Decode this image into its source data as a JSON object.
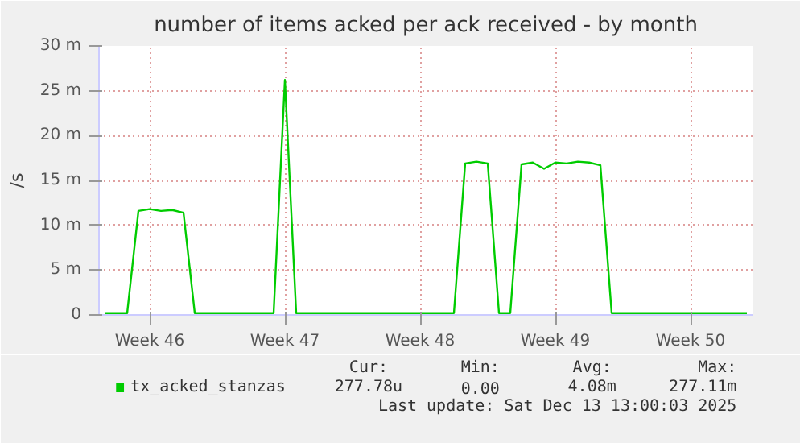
{
  "chart_data": {
    "type": "line",
    "title": "number of items acked per ack received - by month",
    "ylabel": "/s",
    "categories": [
      null,
      null,
      null,
      null,
      "Week 46",
      null,
      null,
      null,
      null,
      null,
      null,
      null,
      null,
      null,
      null,
      null,
      "Week 47",
      null,
      null,
      null,
      null,
      null,
      null,
      null,
      null,
      null,
      null,
      null,
      "Week 48",
      null,
      null,
      null,
      null,
      null,
      null,
      null,
      null,
      null,
      null,
      null,
      "Week 49",
      null,
      null,
      null,
      null,
      null,
      null,
      null,
      null,
      null,
      null,
      null,
      "Week 50",
      null,
      null,
      null,
      null,
      null
    ],
    "ylim": [
      0,
      30
    ],
    "yticks": [
      {
        "value": 0,
        "label": "0"
      },
      {
        "value": 5,
        "label": "5 m"
      },
      {
        "value": 10,
        "label": "10 m"
      },
      {
        "value": 15,
        "label": "15 m"
      },
      {
        "value": 20,
        "label": "20 m"
      },
      {
        "value": 25,
        "label": "25 m"
      },
      {
        "value": 30,
        "label": "30 m"
      }
    ],
    "grid": true,
    "legend": "bottom",
    "series": [
      {
        "name": "tx_acked_stanzas",
        "color": "#00cc00",
        "values": [
          0.2,
          0.2,
          0.2,
          11.6,
          11.8,
          11.6,
          11.7,
          11.4,
          0.2,
          0.2,
          0.2,
          0.2,
          0.2,
          0.2,
          0.2,
          0.2,
          26.2,
          0.2,
          0.2,
          0.2,
          0.2,
          0.2,
          0.2,
          0.2,
          0.2,
          0.2,
          0.2,
          0.2,
          0.2,
          0.2,
          0.2,
          0.2,
          16.9,
          17.1,
          16.9,
          0.2,
          0.2,
          16.8,
          17.0,
          16.3,
          17.0,
          16.9,
          17.1,
          17.0,
          16.7,
          0.2,
          0.2,
          0.2,
          0.2,
          0.2,
          0.2,
          0.2,
          0.2,
          0.2,
          0.2,
          0.2,
          0.2,
          0.2
        ]
      }
    ],
    "annotations": [
      "Cur:",
      "Min:",
      "Avg:",
      "Max:",
      "277.78u",
      "0.00",
      "4.08m",
      "277.11m",
      "Last update: Sat Dec 13 13:00:03 2025"
    ]
  }
}
